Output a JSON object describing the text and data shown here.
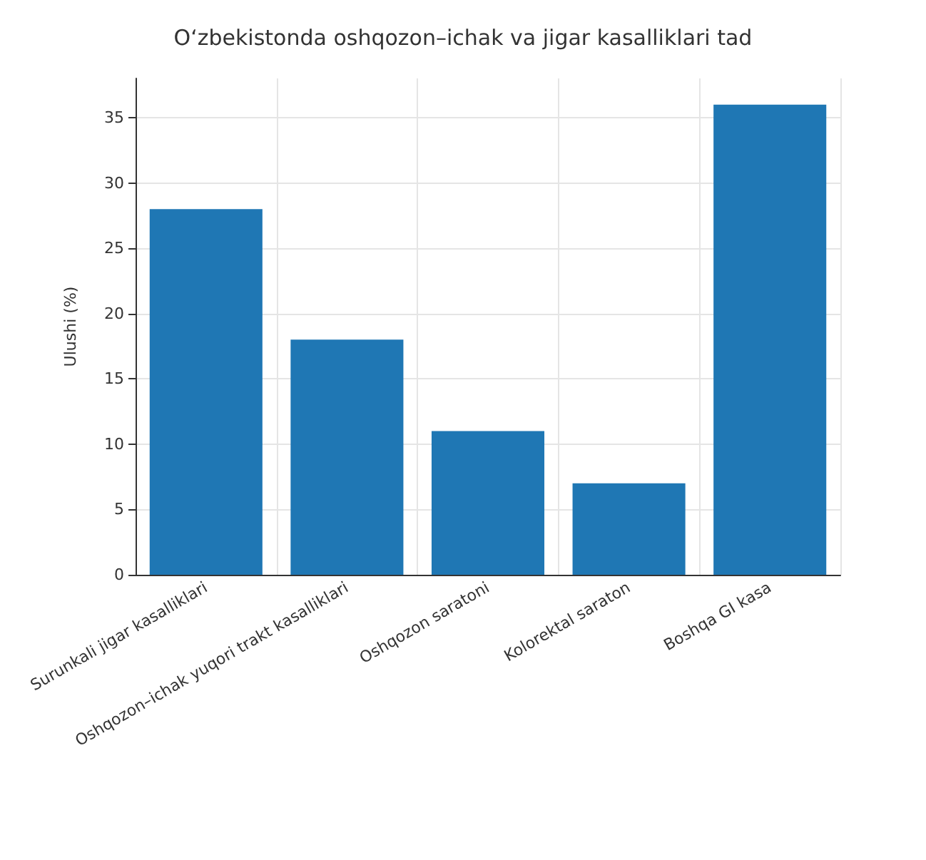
{
  "chart_data": {
    "type": "bar",
    "title": "O‘zbekistonda oshqozon–ichak va jigar kasalliklari tad",
    "ylabel": "Ulushi (%)",
    "categories": [
      "Surunkali jigar kasalliklari",
      "Oshqozon–ichak yuqori trakt kasalliklari",
      "Oshqozon saratoni",
      "Kolorektal saraton",
      "Boshqa GI kasa"
    ],
    "values": [
      28,
      18,
      11,
      7,
      36
    ],
    "color": "#1f77b4",
    "ylim": [
      0,
      38
    ],
    "yticks": [
      0,
      5,
      10,
      15,
      20,
      25,
      30,
      35
    ],
    "grid": true
  }
}
